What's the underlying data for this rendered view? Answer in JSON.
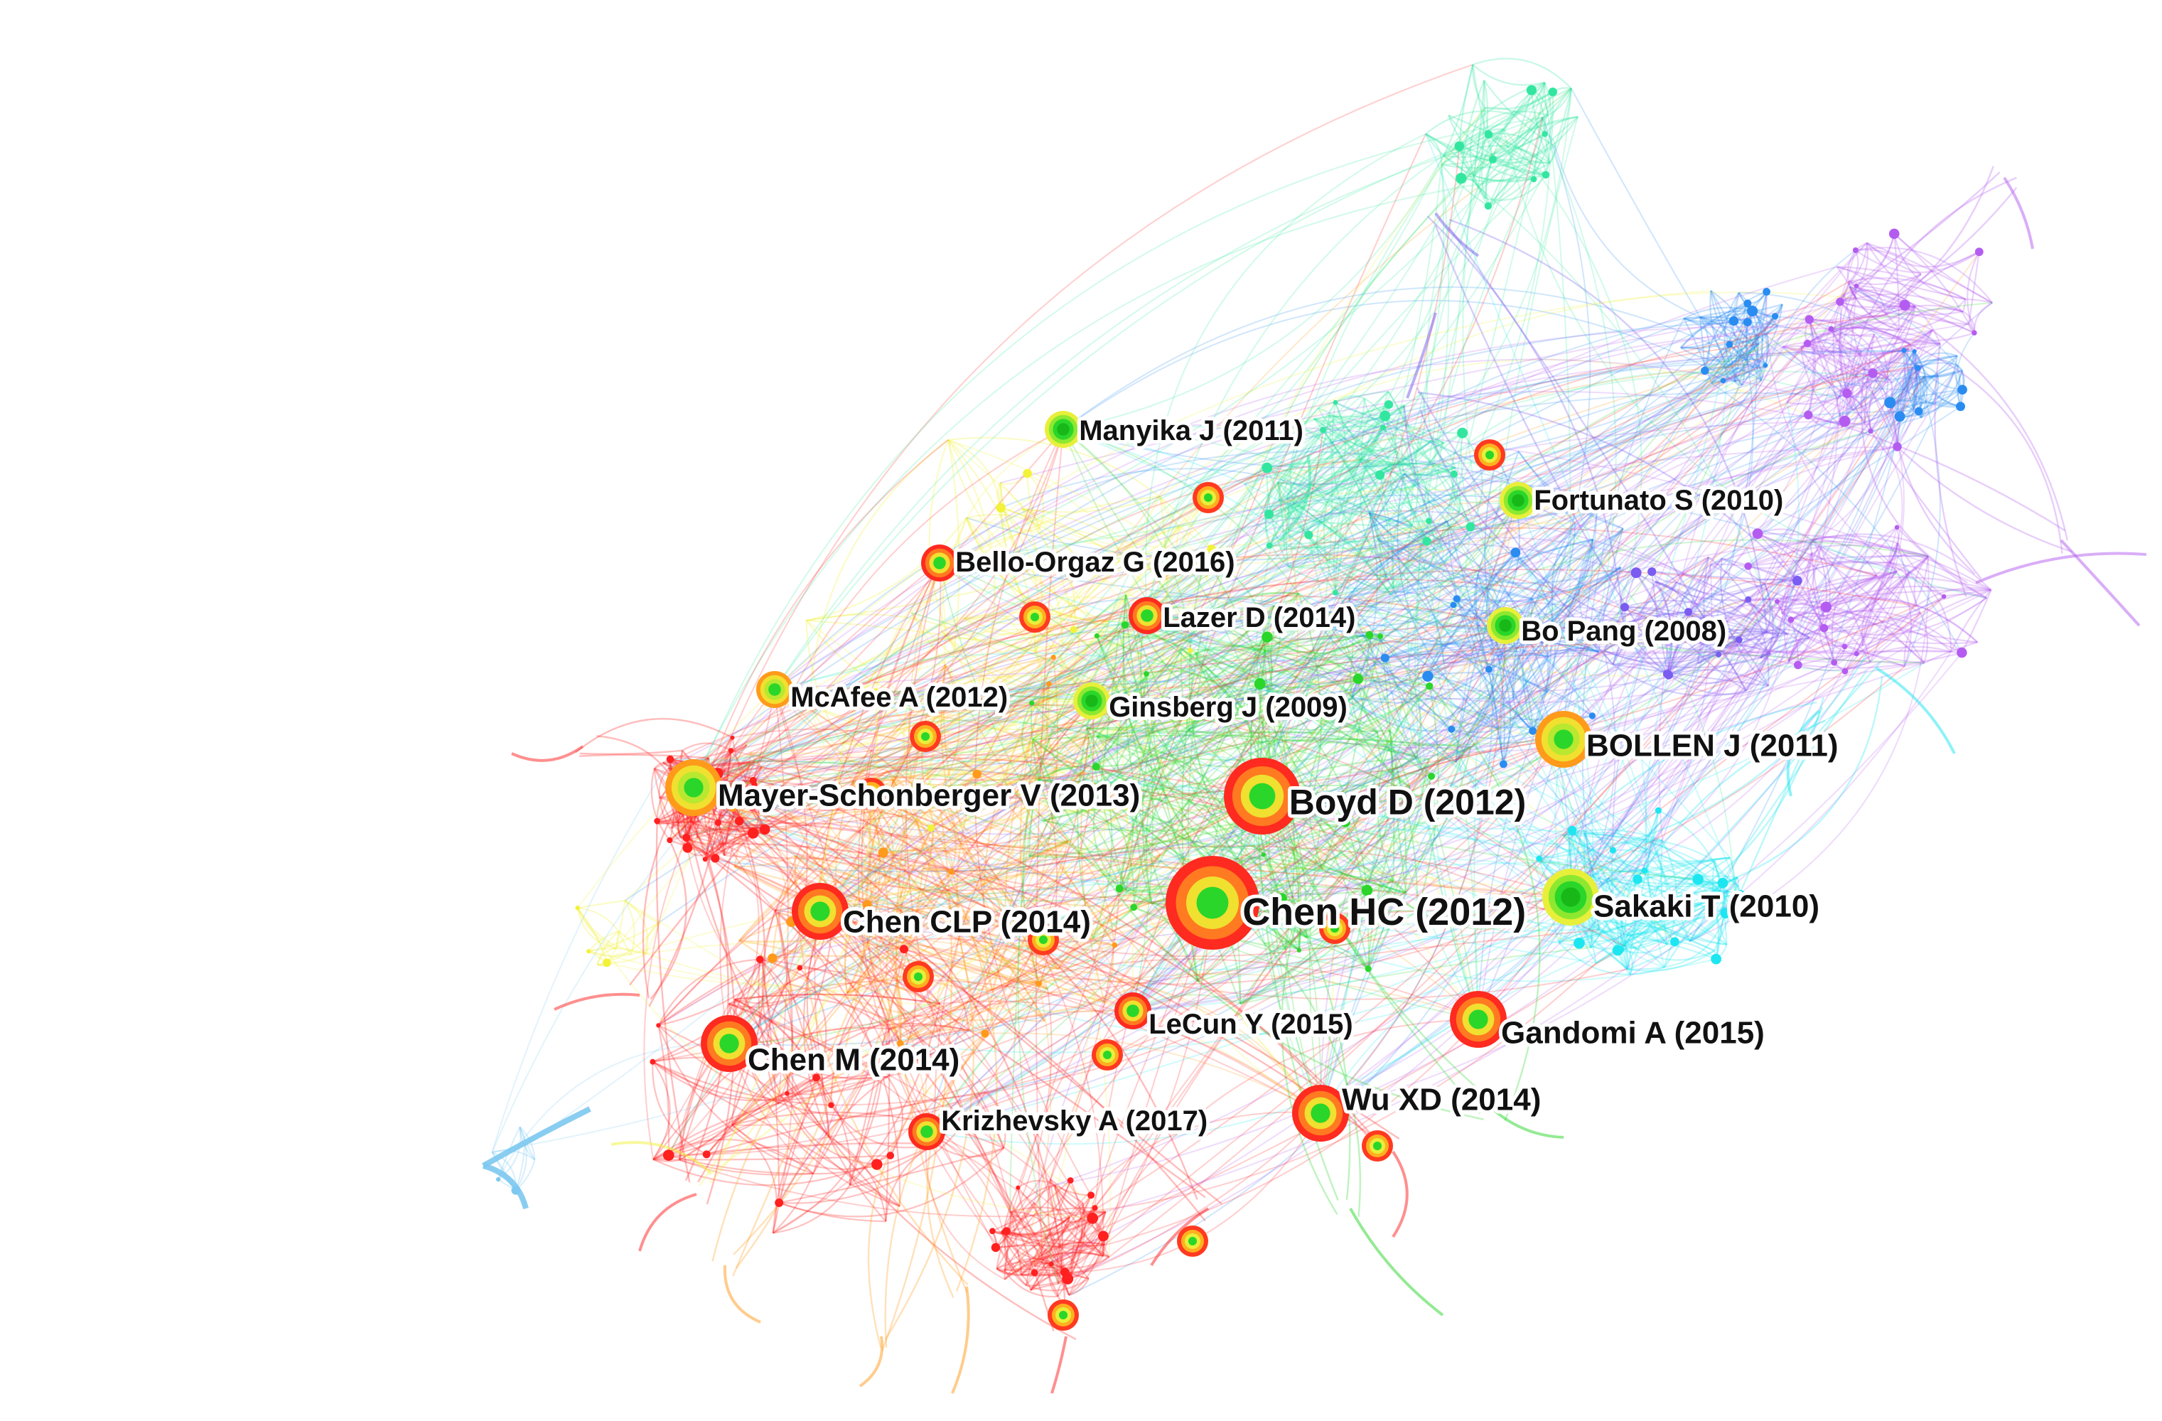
{
  "diagram": {
    "type": "co-citation network",
    "colors": {
      "red": "#ff2020",
      "orange": "#ff9a1a",
      "yellow": "#f2f23a",
      "green": "#2ad62a",
      "mint": "#33e6a0",
      "cyan": "#1ee6f0",
      "blue": "#2a8cf0",
      "violet": "#7a5cf0",
      "purple": "#b45cf0",
      "lightblue": "#7cc8f0"
    },
    "nodes": [
      {
        "id": "manyika",
        "label": "Manyika J (2011)",
        "size": "small",
        "color": "green"
      },
      {
        "id": "fortunato",
        "label": "Fortunato S (2010)",
        "size": "small",
        "color": "green"
      },
      {
        "id": "bello",
        "label": "Bello-Orgaz G (2016)",
        "size": "small",
        "color": "red"
      },
      {
        "id": "lazer",
        "label": "Lazer D (2014)",
        "size": "small",
        "color": "red"
      },
      {
        "id": "bopang",
        "label": "Bo Pang (2008)",
        "size": "small",
        "color": "green"
      },
      {
        "id": "mcafee",
        "label": "McAfee A (2012)",
        "size": "small",
        "color": "orange"
      },
      {
        "id": "ginsberg",
        "label": "Ginsberg J (2009)",
        "size": "small",
        "color": "green"
      },
      {
        "id": "bollen",
        "label": "BOLLEN J (2011)",
        "size": "medium",
        "color": "orange"
      },
      {
        "id": "mayer",
        "label": "Mayer-Schonberger V (2013)",
        "size": "medium",
        "color": "orange"
      },
      {
        "id": "boyd",
        "label": "Boyd D (2012)",
        "size": "large",
        "color": "red"
      },
      {
        "id": "chenclp",
        "label": "Chen CLP (2014)",
        "size": "medium",
        "color": "red"
      },
      {
        "id": "chenhc",
        "label": "Chen HC (2012)",
        "size": "xlarge",
        "color": "red"
      },
      {
        "id": "sakaki",
        "label": "Sakaki T (2010)",
        "size": "medium",
        "color": "green"
      },
      {
        "id": "lecun",
        "label": "LeCun Y (2015)",
        "size": "small",
        "color": "red"
      },
      {
        "id": "gandomi",
        "label": "Gandomi A (2015)",
        "size": "medium",
        "color": "red"
      },
      {
        "id": "chenm",
        "label": "Chen M (2014)",
        "size": "medium",
        "color": "red"
      },
      {
        "id": "wuxd",
        "label": "Wu XD (2014)",
        "size": "medium",
        "color": "red"
      },
      {
        "id": "krizhevsky",
        "label": "Krizhevsky A (2017)",
        "size": "small",
        "color": "red"
      }
    ],
    "clusters": [
      "red",
      "orange",
      "yellow",
      "green",
      "mint",
      "cyan",
      "blue",
      "violet",
      "purple",
      "lightblue"
    ]
  }
}
